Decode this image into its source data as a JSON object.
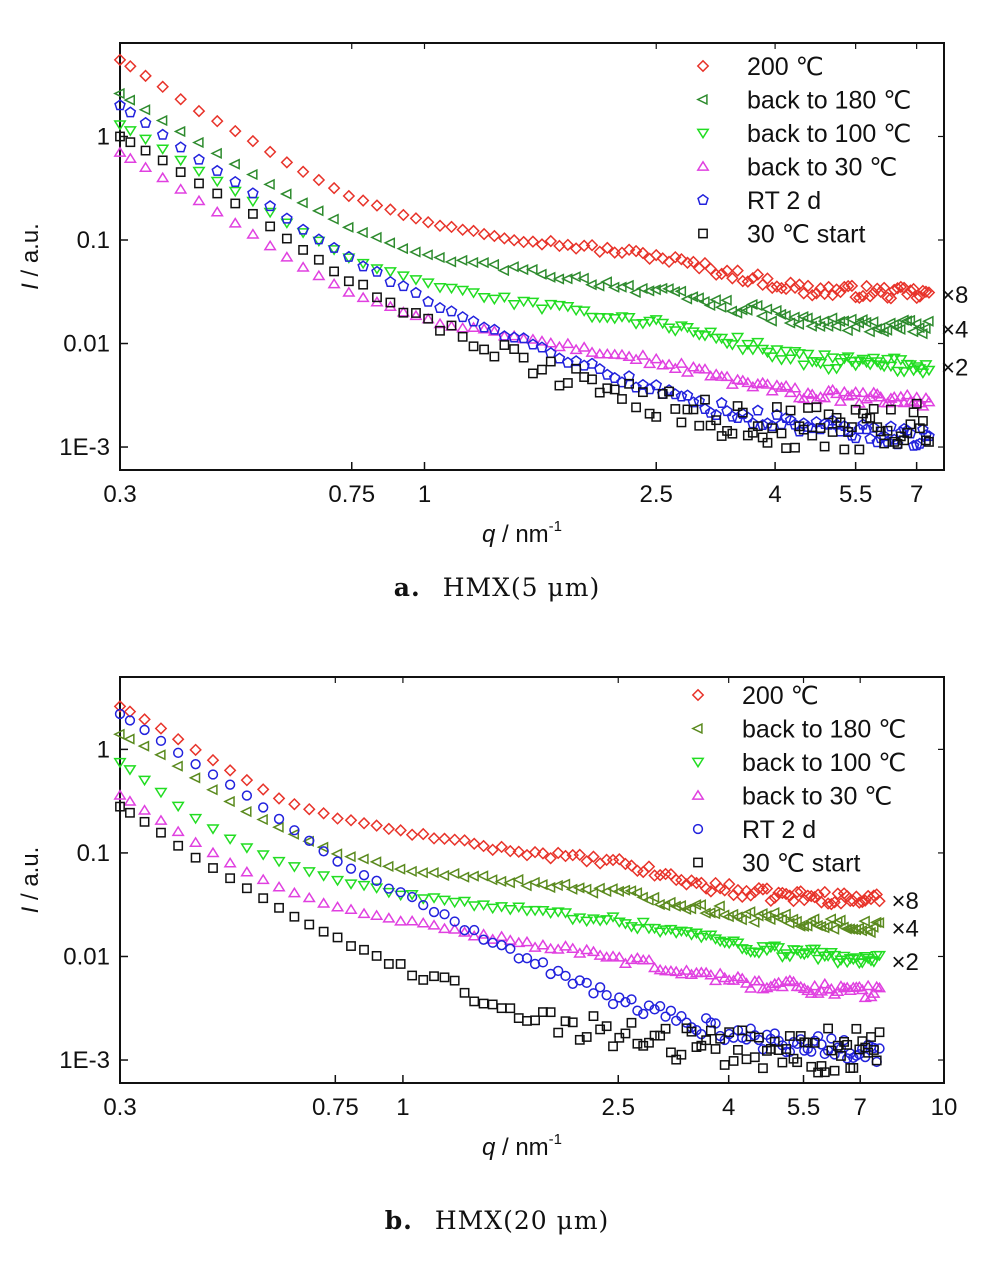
{
  "chart_data": [
    {
      "type": "scatter",
      "panel": "a",
      "caption_letter": "a.",
      "caption_text": "HMX(5 μm)",
      "xlabel_var": "q",
      "xlabel_unit": "nm",
      "xlabel_exp": "-1",
      "ylabel_var": "I",
      "ylabel_unit": "a.u.",
      "x_scale": "log",
      "y_scale": "log",
      "xlim": [
        0.3,
        7.8
      ],
      "ylim": [
        0.0006,
        8
      ],
      "x_ticks": [
        0.3,
        0.75,
        1,
        2.5,
        4,
        5.5,
        7
      ],
      "x_tick_labels": [
        "0.3",
        "0.75",
        "1",
        "2.5",
        "4",
        "5.5",
        "7"
      ],
      "y_ticks": [
        0.001,
        0.01,
        0.1,
        1
      ],
      "y_tick_labels": [
        "1E-3",
        "0.01",
        "0.1",
        "1"
      ],
      "legend_position": "top-right",
      "grid": false,
      "series": [
        {
          "name": "200 ℃",
          "marker": "diamond",
          "color": "#e8332a",
          "multiplier_label": "×8",
          "anchors": [
            [
              0.3,
              5.5
            ],
            [
              0.35,
              3.2
            ],
            [
              0.4,
              1.9
            ],
            [
              0.5,
              0.95
            ],
            [
              0.6,
              0.5
            ],
            [
              0.75,
              0.26
            ],
            [
              1.0,
              0.15
            ],
            [
              1.5,
              0.1
            ],
            [
              2.5,
              0.07
            ],
            [
              3.5,
              0.045
            ],
            [
              4.5,
              0.033
            ],
            [
              7.3,
              0.03
            ]
          ],
          "noise": 0.06
        },
        {
          "name": "back to 180 ℃",
          "marker": "triangle-left",
          "color": "#2e8b2e",
          "multiplier_label": "×4",
          "anchors": [
            [
              0.3,
              2.6
            ],
            [
              0.35,
              1.5
            ],
            [
              0.4,
              0.95
            ],
            [
              0.5,
              0.45
            ],
            [
              0.6,
              0.25
            ],
            [
              0.75,
              0.13
            ],
            [
              1.0,
              0.07
            ],
            [
              1.5,
              0.05
            ],
            [
              2.5,
              0.032
            ],
            [
              3.5,
              0.022
            ],
            [
              4.5,
              0.016
            ],
            [
              7.3,
              0.014
            ]
          ],
          "noise": 0.07
        },
        {
          "name": "back to 100 ℃",
          "marker": "triangle-down",
          "color": "#22dd22",
          "multiplier_label": "×2",
          "anchors": [
            [
              0.3,
              1.3
            ],
            [
              0.35,
              0.8
            ],
            [
              0.4,
              0.5
            ],
            [
              0.5,
              0.25
            ],
            [
              0.6,
              0.13
            ],
            [
              0.75,
              0.065
            ],
            [
              1.0,
              0.038
            ],
            [
              1.5,
              0.024
            ],
            [
              2.5,
              0.016
            ],
            [
              3.5,
              0.01
            ],
            [
              4.5,
              0.0068
            ],
            [
              7.3,
              0.006
            ]
          ],
          "noise": 0.07
        },
        {
          "name": "back to 30 ℃",
          "marker": "triangle-up",
          "color": "#e040e0",
          "multiplier_label": "",
          "anchors": [
            [
              0.3,
              0.7
            ],
            [
              0.35,
              0.42
            ],
            [
              0.4,
              0.26
            ],
            [
              0.5,
              0.12
            ],
            [
              0.6,
              0.06
            ],
            [
              0.75,
              0.03
            ],
            [
              1.0,
              0.017
            ],
            [
              1.5,
              0.011
            ],
            [
              2.5,
              0.0067
            ],
            [
              3.5,
              0.0042
            ],
            [
              4.5,
              0.0032
            ],
            [
              7.3,
              0.0028
            ]
          ],
          "noise": 0.06
        },
        {
          "name": "RT 2 d",
          "marker": "pentagon",
          "color": "#2222dd",
          "multiplier_label": "",
          "anchors": [
            [
              0.3,
              2.0
            ],
            [
              0.35,
              1.1
            ],
            [
              0.4,
              0.65
            ],
            [
              0.5,
              0.3
            ],
            [
              0.6,
              0.14
            ],
            [
              0.75,
              0.065
            ],
            [
              1.0,
              0.027
            ],
            [
              1.5,
              0.01
            ],
            [
              2.0,
              0.0055
            ],
            [
              2.5,
              0.0035
            ],
            [
              3.5,
              0.002
            ],
            [
              4.5,
              0.0016
            ],
            [
              7.3,
              0.0012
            ]
          ],
          "noise": 0.09
        },
        {
          "name": "30 ℃ start",
          "marker": "square",
          "color": "#111111",
          "multiplier_label": "",
          "anchors": [
            [
              0.3,
              1.0
            ],
            [
              0.35,
              0.62
            ],
            [
              0.4,
              0.38
            ],
            [
              0.5,
              0.19
            ],
            [
              0.6,
              0.09
            ],
            [
              0.75,
              0.04
            ],
            [
              1.0,
              0.017
            ],
            [
              1.5,
              0.0065
            ],
            [
              2.0,
              0.0037
            ],
            [
              2.5,
              0.0026
            ],
            [
              3.5,
              0.0017
            ],
            [
              4.5,
              0.0015
            ],
            [
              7.3,
              0.0016
            ]
          ],
          "noise": 0.22
        }
      ]
    },
    {
      "type": "scatter",
      "panel": "b",
      "caption_letter": "b.",
      "caption_text": "HMX(20 μm)",
      "xlabel_var": "q",
      "xlabel_unit": "nm",
      "xlabel_exp": "-1",
      "ylabel_var": "I",
      "ylabel_unit": "a.u.",
      "x_scale": "log",
      "y_scale": "log",
      "xlim": [
        0.3,
        10
      ],
      "ylim": [
        0.0006,
        5
      ],
      "x_ticks": [
        0.3,
        0.75,
        1,
        2.5,
        4,
        5.5,
        7,
        10
      ],
      "x_tick_labels": [
        "0.3",
        "0.75",
        "1",
        "2.5",
        "4",
        "5.5",
        "7",
        "10"
      ],
      "y_ticks": [
        0.001,
        0.01,
        0.1,
        1
      ],
      "y_tick_labels": [
        "1E-3",
        "0.01",
        "0.1",
        "1"
      ],
      "legend_position": "top-right",
      "grid": false,
      "series": [
        {
          "name": "200 ℃",
          "marker": "diamond",
          "color": "#e8332a",
          "multiplier_label": "×8",
          "anchors": [
            [
              0.3,
              2.6
            ],
            [
              0.35,
              1.7
            ],
            [
              0.4,
              1.1
            ],
            [
              0.5,
              0.55
            ],
            [
              0.6,
              0.32
            ],
            [
              0.75,
              0.22
            ],
            [
              1.0,
              0.16
            ],
            [
              1.5,
              0.11
            ],
            [
              2.5,
              0.08
            ],
            [
              3.5,
              0.05
            ],
            [
              4.5,
              0.04
            ],
            [
              7.5,
              0.035
            ]
          ],
          "noise": 0.06
        },
        {
          "name": "back to 180 ℃",
          "marker": "triangle-left",
          "color": "#5a8a1e",
          "multiplier_label": "×4",
          "anchors": [
            [
              0.3,
              1.4
            ],
            [
              0.35,
              0.95
            ],
            [
              0.4,
              0.6
            ],
            [
              0.5,
              0.27
            ],
            [
              0.6,
              0.17
            ],
            [
              0.75,
              0.1
            ],
            [
              1.0,
              0.07
            ],
            [
              1.5,
              0.055
            ],
            [
              2.5,
              0.042
            ],
            [
              3.5,
              0.03
            ],
            [
              4.5,
              0.024
            ],
            [
              7.5,
              0.019
            ]
          ],
          "noise": 0.06
        },
        {
          "name": "back to 100 ℃",
          "marker": "triangle-down",
          "color": "#22dd22",
          "multiplier_label": "×2",
          "anchors": [
            [
              0.3,
              0.75
            ],
            [
              0.35,
              0.42
            ],
            [
              0.4,
              0.24
            ],
            [
              0.5,
              0.12
            ],
            [
              0.6,
              0.08
            ],
            [
              0.75,
              0.055
            ],
            [
              1.0,
              0.04
            ],
            [
              1.5,
              0.03
            ],
            [
              2.5,
              0.022
            ],
            [
              3.5,
              0.016
            ],
            [
              4.5,
              0.012
            ],
            [
              7.5,
              0.009
            ]
          ],
          "noise": 0.06
        },
        {
          "name": "back to 30 ℃",
          "marker": "triangle-up",
          "color": "#e040e0",
          "multiplier_label": "",
          "anchors": [
            [
              0.3,
              0.36
            ],
            [
              0.35,
              0.22
            ],
            [
              0.4,
              0.14
            ],
            [
              0.5,
              0.07
            ],
            [
              0.6,
              0.045
            ],
            [
              0.75,
              0.03
            ],
            [
              1.0,
              0.022
            ],
            [
              1.5,
              0.015
            ],
            [
              2.5,
              0.0095
            ],
            [
              3.5,
              0.0068
            ],
            [
              4.5,
              0.0055
            ],
            [
              7.5,
              0.0045
            ]
          ],
          "noise": 0.06
        },
        {
          "name": "RT 2 d",
          "marker": "circle",
          "color": "#2222dd",
          "multiplier_label": "",
          "anchors": [
            [
              0.3,
              2.2
            ],
            [
              0.35,
              1.3
            ],
            [
              0.4,
              0.8
            ],
            [
              0.5,
              0.4
            ],
            [
              0.6,
              0.2
            ],
            [
              0.75,
              0.085
            ],
            [
              1.0,
              0.04
            ],
            [
              1.5,
              0.013
            ],
            [
              2.0,
              0.006
            ],
            [
              2.5,
              0.0038
            ],
            [
              3.5,
              0.0022
            ],
            [
              4.5,
              0.0016
            ],
            [
              7.5,
              0.0012
            ]
          ],
          "noise": 0.1
        },
        {
          "name": "30 ℃ start",
          "marker": "square",
          "color": "#111111",
          "multiplier_label": "",
          "anchors": [
            [
              0.3,
              0.28
            ],
            [
              0.35,
              0.17
            ],
            [
              0.4,
              0.1
            ],
            [
              0.5,
              0.05
            ],
            [
              0.6,
              0.028
            ],
            [
              0.75,
              0.015
            ],
            [
              1.0,
              0.0075
            ],
            [
              1.5,
              0.0037
            ],
            [
              2.0,
              0.0022
            ],
            [
              2.5,
              0.0018
            ],
            [
              3.5,
              0.0014
            ],
            [
              4.5,
              0.0013
            ],
            [
              7.5,
              0.0012
            ]
          ],
          "noise": 0.22
        }
      ]
    }
  ]
}
